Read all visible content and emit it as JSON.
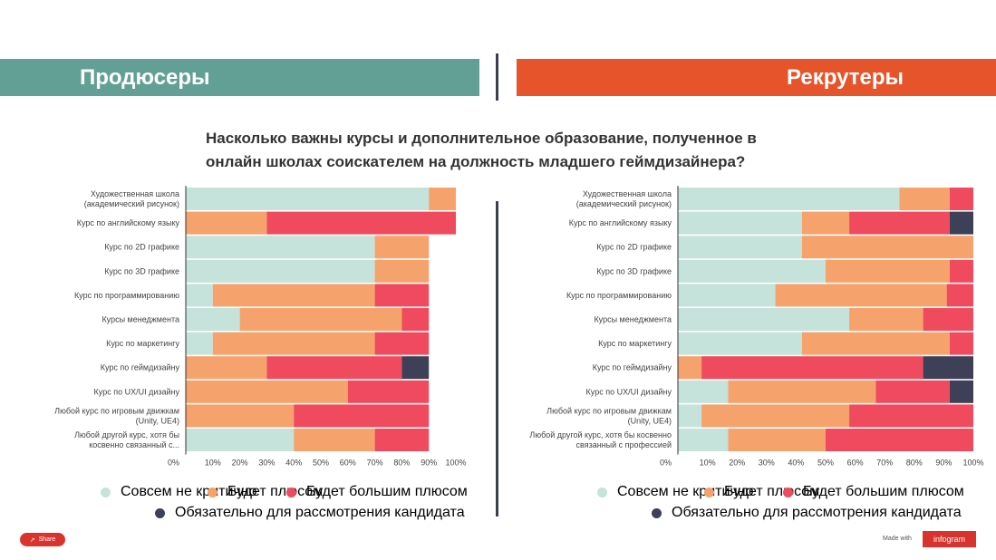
{
  "header": {
    "left_title": "Продюсеры",
    "right_title": "Рекрутеры"
  },
  "question": "Насколько важны курсы и дополнительное образование, полученное в онлайн школах соискателем на должность младшего геймдизайнера?",
  "colors": {
    "left_banner": "#62a096",
    "right_banner": "#e5542a",
    "s0": "#c5e2db",
    "s1": "#f5a26d",
    "s2": "#ef4a5d",
    "s3": "#3d4056"
  },
  "chart_data": [
    {
      "type": "bar",
      "orientation": "horizontal-stacked",
      "title": "Продюсеры",
      "categories": [
        [
          "Художественная школа",
          "(академический рисунок)"
        ],
        [
          "Курс по английскому языку"
        ],
        [
          "Курс по 2D графике"
        ],
        [
          "Курс по 3D графике"
        ],
        [
          "Курс по программированию"
        ],
        [
          "Курсы менеджмента"
        ],
        [
          "Курс по маркетингу"
        ],
        [
          "Курс по геймдизайну"
        ],
        [
          "Курс по UX/UI дизайну"
        ],
        [
          "Любой курс по игровым движкам",
          "(Unity, UE4)"
        ],
        [
          "Любой другой курс, хотя бы",
          "косвенно связанный с..."
        ]
      ],
      "series": [
        {
          "name": "Совсем не критично",
          "values": [
            90,
            0,
            70,
            70,
            10,
            20,
            10,
            0,
            0,
            0,
            40
          ]
        },
        {
          "name": "Будет плюсом",
          "values": [
            10,
            30,
            20,
            20,
            60,
            60,
            60,
            30,
            60,
            40,
            30
          ]
        },
        {
          "name": "Будет большим плюсом",
          "values": [
            0,
            70,
            0,
            0,
            20,
            10,
            20,
            50,
            30,
            50,
            20
          ]
        },
        {
          "name": "Обязательно для рассмотрения кандидата",
          "values": [
            0,
            0,
            0,
            0,
            0,
            0,
            0,
            10,
            0,
            0,
            0
          ]
        }
      ],
      "xticks": [
        "0%",
        "10%",
        "20%",
        "30%",
        "40%",
        "50%",
        "60%",
        "70%",
        "80%",
        "90%",
        "100%"
      ],
      "xlim": [
        0,
        100
      ]
    },
    {
      "type": "bar",
      "orientation": "horizontal-stacked",
      "title": "Рекрутеры",
      "categories": [
        [
          "Художественная школа",
          "(академический рисунок)"
        ],
        [
          "Курс по английскому языку"
        ],
        [
          "Курс по 2D графике"
        ],
        [
          "Курс по 3D графике"
        ],
        [
          "Курс по программированию"
        ],
        [
          "Курсы менеджмента"
        ],
        [
          "Курс по маркетингу"
        ],
        [
          "Курс по геймдизайну"
        ],
        [
          "Курс по UX/UI дизайну"
        ],
        [
          "Любой курс по игровым движкам",
          "(Unity, UE4)"
        ],
        [
          "Любой другой курс, хотя бы косвенно",
          "связанный с профессией"
        ]
      ],
      "series": [
        {
          "name": "Совсем не критично",
          "values": [
            75,
            42,
            42,
            50,
            33,
            58,
            42,
            0,
            17,
            8,
            17
          ]
        },
        {
          "name": "Будет плюсом",
          "values": [
            17,
            16,
            58,
            42,
            58,
            25,
            50,
            8,
            50,
            50,
            33
          ]
        },
        {
          "name": "Будет большим плюсом",
          "values": [
            8,
            34,
            0,
            8,
            9,
            17,
            8,
            75,
            25,
            42,
            50
          ]
        },
        {
          "name": "Обязательно для рассмотрения кандидата",
          "values": [
            0,
            8,
            0,
            0,
            0,
            0,
            0,
            17,
            8,
            0,
            0
          ]
        }
      ],
      "xticks": [
        "0%",
        "10%",
        "20%",
        "30%",
        "40%",
        "50%",
        "60%",
        "70%",
        "80%",
        "90%",
        "100%"
      ],
      "xlim": [
        0,
        100
      ]
    }
  ],
  "legend": {
    "items": [
      "Совсем не критично",
      "Будет плюсом",
      "Будет большим плюсом",
      "Обязательно для рассмотрения кандидата"
    ]
  },
  "footer": {
    "share_label": "Share",
    "made_with": "Made with",
    "brand": "infogram"
  }
}
